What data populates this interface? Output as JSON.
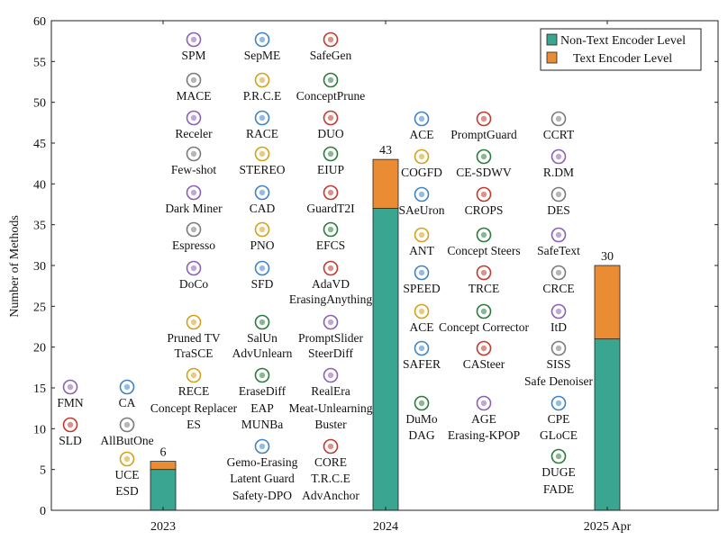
{
  "colors": {
    "non_text": "#3aa590",
    "text_enc": "#ea8c33",
    "axis": "#222222"
  },
  "chart_data": {
    "type": "bar",
    "stacked": true,
    "categories": [
      "2023",
      "2024",
      "2025 Apr"
    ],
    "series": [
      {
        "name": "Non-Text Encoder Level",
        "values": [
          5,
          37,
          21
        ]
      },
      {
        "name": "Text Encoder Level",
        "values": [
          1,
          6,
          9
        ]
      }
    ],
    "totals": [
      "6",
      "43",
      "30"
    ],
    "xlabel": "",
    "ylabel": "Number of Methods",
    "ylim": [
      0,
      60
    ],
    "yticks": [
      "0",
      "5",
      "10",
      "15",
      "20",
      "25",
      "30",
      "35",
      "40",
      "45",
      "50",
      "55",
      "60"
    ],
    "grid": false,
    "legend": "top-right"
  },
  "method_labels": [
    [
      "FMN",
      "shi-logo"
    ],
    [
      "CA",
      "university-seal-logo"
    ],
    [
      "SLD",
      "dfki-logo"
    ],
    [
      "AllButOne",
      "university-logo"
    ],
    [
      "UCE",
      "northeastern-logo"
    ],
    [
      "ESD",
      ""
    ],
    [
      "SPM",
      "university-seal-logo"
    ],
    [
      "SepME",
      "university-seal-logo"
    ],
    [
      "SafeGen",
      "university-seal-logo"
    ],
    [
      "MACE",
      "university-seal-logo"
    ],
    [
      "P.R.C.E",
      "university-shield-logo"
    ],
    [
      "ConceptPrune",
      "university-seal-logo"
    ],
    [
      "Receler",
      "university-logo"
    ],
    [
      "RACE",
      "university-seal-logo"
    ],
    [
      "DUO",
      "university-seal-logo"
    ],
    [
      "Few-shot",
      "university-logo"
    ],
    [
      "STEREO",
      "university-seal-logo"
    ],
    [
      "EIUP",
      "university-seal-logo"
    ],
    [
      "Dark Miner",
      "institute-logo"
    ],
    [
      "CAD",
      "university-logo"
    ],
    [
      "GuardT2I",
      "university-shield-logo"
    ],
    [
      "Espresso",
      "university-logo"
    ],
    [
      "PNO",
      "university-logo"
    ],
    [
      "EFCS",
      "university-seal-logo"
    ],
    [
      "DoCo",
      "university-seal-logo"
    ],
    [
      "SFD",
      "university-seal-logo"
    ],
    [
      "AdaVD",
      "university-seal-logo"
    ],
    [
      "ErasingAnything",
      ""
    ],
    [
      "Pruned TV",
      "university-logo"
    ],
    [
      "SalUn",
      "university-logo"
    ],
    [
      "PromptSlider",
      "university-seal-logo"
    ],
    [
      "TraSCE",
      ""
    ],
    [
      "AdvUnlearn",
      ""
    ],
    [
      "SteerDiff",
      ""
    ],
    [
      "RECE",
      "university-seal-logo"
    ],
    [
      "EraseDiff",
      "university-shield-logo"
    ],
    [
      "RealEra",
      "university-seal-logo"
    ],
    [
      "Concept Replacer",
      ""
    ],
    [
      "EAP",
      ""
    ],
    [
      "Meat-Unlearning",
      ""
    ],
    [
      "ES",
      ""
    ],
    [
      "MUNBa",
      ""
    ],
    [
      "Buster",
      ""
    ],
    [
      "Gemo-Erasing",
      "university-shield-logo"
    ],
    [
      "CORE",
      "dots-logo"
    ],
    [
      "Latent Guard",
      ""
    ],
    [
      "T.R.C.E",
      ""
    ],
    [
      "Safety-DPO",
      ""
    ],
    [
      "AdvAnchor",
      ""
    ],
    [
      "ACE",
      "university-seal-logo"
    ],
    [
      "PromptGuard",
      "university-shield-logo"
    ],
    [
      "CCRT",
      "university-shield-logo"
    ],
    [
      "COGFD",
      "university-seal-logo"
    ],
    [
      "CE-SDWV",
      "university-seal-logo"
    ],
    [
      "R.DM",
      "university-seal-logo"
    ],
    [
      "SAeUron",
      "university-seal-logo"
    ],
    [
      "CROPS",
      "university-seal-logo"
    ],
    [
      "DES",
      "university-seal-logo"
    ],
    [
      "ANT",
      "university-shield-logo"
    ],
    [
      "Concept Steers",
      "university-seal-logo"
    ],
    [
      "SafeText",
      "university-shield-logo"
    ],
    [
      "SPEED",
      "university-seal-logo"
    ],
    [
      "TRCE",
      "university-seal-logo"
    ],
    [
      "CRCE",
      "university-seal-logo"
    ],
    [
      "ACE",
      "university-seal-logo"
    ],
    [
      "Concept Corrector",
      "university-seal-logo"
    ],
    [
      "ItD",
      "university-shield-logo"
    ],
    [
      "SAFER",
      "university-seal-logo"
    ],
    [
      "CASteer",
      "university-shield-logo"
    ],
    [
      "SISS",
      "university-seal-logo"
    ],
    [
      "Safe Denoiser",
      ""
    ],
    [
      "DuMo",
      "university-seal-logo"
    ],
    [
      "AGE",
      "university-shield-logo"
    ],
    [
      "CPE",
      "university-seal-logo"
    ],
    [
      "DAG",
      ""
    ],
    [
      "Erasing-KPOP",
      ""
    ],
    [
      "GLoCE",
      ""
    ],
    [
      "DUGE",
      "university-seal-logo"
    ],
    [
      "FADE",
      ""
    ]
  ]
}
